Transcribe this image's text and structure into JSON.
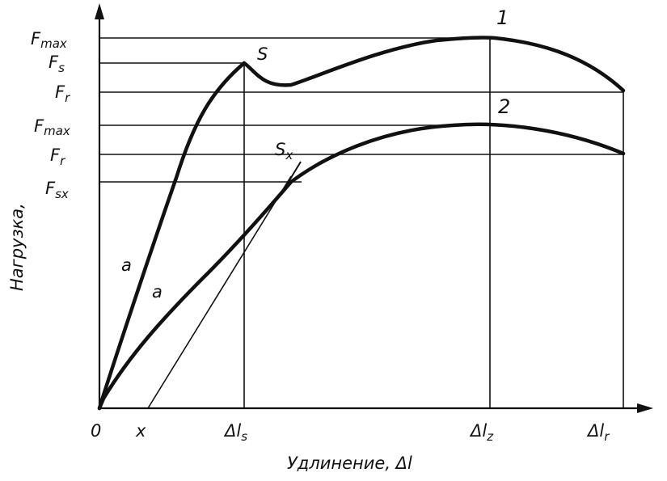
{
  "x_axis": {
    "title": "Удлинение, Δl",
    "ticks": {
      "origin": "0",
      "x": "x",
      "dl_s": {
        "main": "Δl",
        "sub": "s"
      },
      "dl_z": {
        "main": "Δl",
        "sub": "z"
      },
      "dl_r": {
        "main": "Δl",
        "sub": "r"
      }
    }
  },
  "y_axis": {
    "title": "Нагрузка,",
    "ticks": {
      "fmax1": {
        "main": "F",
        "sub": "max"
      },
      "fs": {
        "main": "F",
        "sub": "s"
      },
      "fr1": {
        "main": "F",
        "sub": "r"
      },
      "fmax2": {
        "main": "F",
        "sub": "max"
      },
      "fr2": {
        "main": "F",
        "sub": "r"
      },
      "fsx": {
        "main": "F",
        "sub": "sx"
      }
    }
  },
  "curve_labels": {
    "curve1": "1",
    "curve2": "2",
    "yield_point": "S",
    "yield_point_offset": {
      "main": "S",
      "sub": "x"
    },
    "linear_a1": "a",
    "linear_a2": "a"
  }
}
